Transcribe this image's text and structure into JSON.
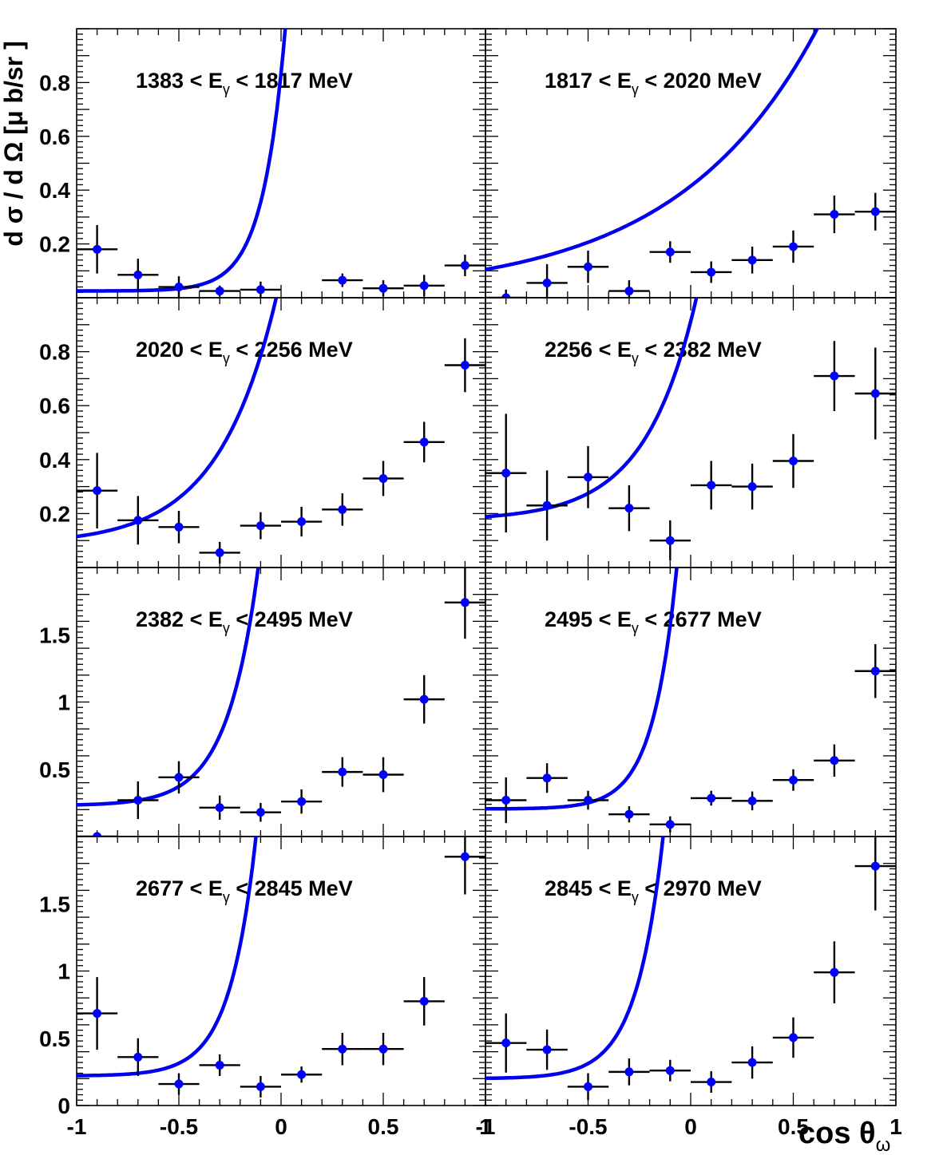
{
  "figure": {
    "ylabel": "d σ / d Ω  [μ b/sr ]",
    "xlabel": "cos θ",
    "xlabel_subscript": "ω"
  },
  "chart_data": {
    "type": "scatter",
    "layout": "4x2 grid of panels sharing axes",
    "xlabel": "cos θω",
    "ylabel": "dσ/dΩ [μb/sr]",
    "xlim": [
      -1,
      1
    ],
    "xticks": [
      -1,
      -0.5,
      0,
      0.5,
      1
    ],
    "xtick_labels": [
      "-1",
      "-0.5",
      "0",
      "0.5",
      "1"
    ],
    "series_style": {
      "points": "#0000ff",
      "errorbars": "#000000",
      "fit_curve": "#0000ee"
    },
    "rows": [
      {
        "ylim": [
          0,
          1.0
        ],
        "yticks": [
          0.2,
          0.4,
          0.6,
          0.8
        ],
        "ytick_labels": [
          "0.2",
          "0.4",
          "0.6",
          "0.8"
        ]
      },
      {
        "ylim": [
          0,
          1.0
        ],
        "yticks": [
          0.2,
          0.4,
          0.6,
          0.8
        ],
        "ytick_labels": [
          "0.2",
          "0.4",
          "0.6",
          "0.8"
        ]
      },
      {
        "ylim": [
          0,
          2.0
        ],
        "yticks": [
          0.5,
          1.0,
          1.5
        ],
        "ytick_labels": [
          "0.5",
          "1",
          "1.5"
        ]
      },
      {
        "ylim": [
          0,
          2.0
        ],
        "yticks": [
          0,
          0.5,
          1.0,
          1.5
        ],
        "ytick_labels": [
          "0",
          "0.5",
          "1",
          "1.5"
        ]
      }
    ],
    "panels": [
      {
        "title_left": "1383 < E",
        "title_sub": "γ",
        "title_right": " < 1817 MeV",
        "row": 0,
        "col": 0,
        "x": [
          -0.9,
          -0.7,
          -0.5,
          -0.3,
          -0.1,
          0.3,
          0.5,
          0.7,
          0.9
        ],
        "y": [
          0.18,
          0.085,
          0.04,
          0.025,
          0.03,
          0.065,
          0.035,
          0.045,
          0.12
        ],
        "yerr": [
          0.09,
          0.06,
          0.04,
          0.02,
          0.03,
          0.025,
          0.03,
          0.04,
          0.04
        ],
        "fit": {
          "a": 0.025,
          "b": 0.0001,
          "c": 9.0
        }
      },
      {
        "title_left": "1817 < E",
        "title_sub": "γ",
        "title_right": " < 2020 MeV",
        "row": 0,
        "col": 1,
        "x": [
          -0.9,
          -0.7,
          -0.5,
          -0.3,
          -0.1,
          0.1,
          0.3,
          0.5,
          0.7,
          0.9
        ],
        "y": [
          0.0,
          0.055,
          0.115,
          0.025,
          0.17,
          0.095,
          0.14,
          0.19,
          0.31,
          0.32
        ],
        "yerr": [
          0.03,
          0.07,
          0.06,
          0.04,
          0.04,
          0.04,
          0.05,
          0.06,
          0.07,
          0.07
        ],
        "fit": {
          "a": 0.01,
          "b": 0.095,
          "c": 1.45
        }
      },
      {
        "title_left": "2020 < E",
        "title_sub": "γ",
        "title_right": " < 2256 MeV",
        "row": 1,
        "col": 0,
        "x": [
          -0.9,
          -0.7,
          -0.5,
          -0.3,
          -0.1,
          0.1,
          0.3,
          0.5,
          0.7,
          0.9
        ],
        "y": [
          0.285,
          0.175,
          0.15,
          0.055,
          0.155,
          0.17,
          0.215,
          0.33,
          0.465,
          0.75
        ],
        "yerr": [
          0.14,
          0.09,
          0.06,
          0.04,
          0.05,
          0.055,
          0.06,
          0.065,
          0.075,
          0.1
        ],
        "fit": {
          "a": 0.085,
          "b": 0.03,
          "c": 3.5
        }
      },
      {
        "title_left": "2256 < E",
        "title_sub": "γ",
        "title_right": " < 2382 MeV",
        "row": 1,
        "col": 1,
        "x": [
          -0.9,
          -0.7,
          -0.5,
          -0.3,
          -0.1,
          0.1,
          0.3,
          0.5,
          0.7,
          0.9
        ],
        "y": [
          0.35,
          0.23,
          0.335,
          0.22,
          0.1,
          0.305,
          0.3,
          0.395,
          0.71,
          0.645
        ],
        "yerr": [
          0.22,
          0.13,
          0.115,
          0.085,
          0.075,
          0.09,
          0.085,
          0.1,
          0.13,
          0.17
        ],
        "fit": {
          "a": 0.175,
          "b": 0.0135,
          "c": 4.0
        }
      },
      {
        "title_left": "2382 < E",
        "title_sub": "γ",
        "title_right": " < 2495 MeV",
        "row": 2,
        "col": 0,
        "x": [
          -0.9,
          -0.7,
          -0.5,
          -0.3,
          -0.1,
          0.1,
          0.3,
          0.5,
          0.7,
          0.9
        ],
        "y": [
          0.0,
          0.27,
          0.44,
          0.215,
          0.18,
          0.26,
          0.48,
          0.46,
          1.02,
          1.74
        ],
        "yerr": [
          0.0,
          0.14,
          0.12,
          0.09,
          0.07,
          0.09,
          0.11,
          0.13,
          0.18,
          0.27
        ],
        "fit": {
          "a": 0.23,
          "b": 0.0055,
          "c": 6.5
        }
      },
      {
        "title_left": "2495 < E",
        "title_sub": "γ",
        "title_right": " < 2677 MeV",
        "row": 2,
        "col": 1,
        "x": [
          -0.9,
          -0.7,
          -0.5,
          -0.3,
          -0.1,
          0.1,
          0.3,
          0.5,
          0.7,
          0.9
        ],
        "y": [
          0.27,
          0.435,
          0.27,
          0.165,
          0.09,
          0.285,
          0.265,
          0.42,
          0.565,
          1.23
        ],
        "yerr": [
          0.17,
          0.11,
          0.07,
          0.06,
          0.06,
          0.055,
          0.07,
          0.08,
          0.12,
          0.2
        ],
        "fit": {
          "a": 0.205,
          "b": 0.00065,
          "c": 8.5
        }
      },
      {
        "title_left": "2677 < E",
        "title_sub": "γ",
        "title_right": " < 2845 MeV",
        "row": 3,
        "col": 0,
        "x": [
          -0.9,
          -0.7,
          -0.5,
          -0.3,
          -0.1,
          0.1,
          0.3,
          0.5,
          0.7,
          0.9
        ],
        "y": [
          0.685,
          0.36,
          0.16,
          0.3,
          0.14,
          0.23,
          0.42,
          0.42,
          0.775,
          1.85
        ],
        "yerr": [
          0.27,
          0.14,
          0.08,
          0.08,
          0.08,
          0.06,
          0.12,
          0.12,
          0.18,
          0.28
        ],
        "fit": {
          "a": 0.22,
          "b": 0.0019,
          "c": 7.8
        }
      },
      {
        "title_left": "2845 < E",
        "title_sub": "γ",
        "title_right": " < 2970 MeV",
        "row": 3,
        "col": 1,
        "x": [
          -0.9,
          -0.7,
          -0.5,
          -0.3,
          -0.1,
          0.1,
          0.3,
          0.5,
          0.7,
          0.9
        ],
        "y": [
          0.465,
          0.415,
          0.14,
          0.25,
          0.26,
          0.175,
          0.32,
          0.505,
          0.99,
          1.78
        ],
        "yerr": [
          0.22,
          0.15,
          0.1,
          0.1,
          0.08,
          0.08,
          0.12,
          0.15,
          0.23,
          0.33
        ],
        "fit": {
          "a": 0.2,
          "b": 0.0025,
          "c": 7.6
        }
      }
    ]
  }
}
